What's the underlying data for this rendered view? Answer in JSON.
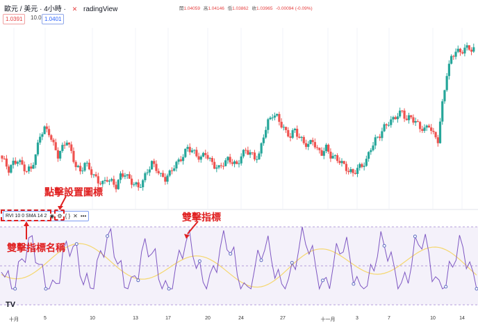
{
  "header": {
    "symbol": "歐元 / 美元 · 4小時 ·",
    "source": "radingView",
    "close_icon": "close-x"
  },
  "ohlc": {
    "open_label": "開",
    "open": "1.04059",
    "high_label": "高",
    "high": "1.04146",
    "low_label": "低",
    "low": "1.03862",
    "close_label": "收",
    "close": "1.03965",
    "change": "-0.00094 (-0.09%)"
  },
  "trade": {
    "sell": "1.0391",
    "spread": "10.0",
    "buy": "1.0401"
  },
  "indicator": {
    "name": "RVI 10 0 SMA 14 2",
    "more": "•••"
  },
  "annotations": {
    "settings": "點擊設置圖標",
    "name": "雙擊指標名稱",
    "double_click": "雙擊指標"
  },
  "xaxis": [
    "十月",
    "5",
    "10",
    "13",
    "17",
    "20",
    "24",
    "27",
    "十一月",
    "3",
    "7",
    "10",
    "14"
  ],
  "colors": {
    "up": "#26a69a",
    "down": "#ef5350",
    "rvi": "#7e57c2",
    "signal": "#f5d76e",
    "accent": "#e02020"
  },
  "logo": "TV",
  "chart_data": {
    "type": "candlestick",
    "price_series": [
      1.056,
      1.0548,
      1.0532,
      1.0545,
      1.0551,
      1.054,
      1.053,
      1.0535,
      1.056,
      1.06,
      1.0612,
      1.0605,
      1.058,
      1.056,
      1.0575,
      1.059,
      1.0565,
      1.054,
      1.0528,
      1.0545,
      1.0535,
      1.052,
      1.051,
      1.0505,
      1.0515,
      1.0508,
      1.05,
      1.052,
      1.0525,
      1.0512,
      1.0505,
      1.0498,
      1.051,
      1.053,
      1.0545,
      1.0535,
      1.052,
      1.0515,
      1.0525,
      1.054,
      1.0548,
      1.056,
      1.0575,
      1.057,
      1.056,
      1.0555,
      1.0565,
      1.055,
      1.054,
      1.0535,
      1.0545,
      1.0552,
      1.0548,
      1.054,
      1.056,
      1.057,
      1.0565,
      1.0555,
      1.056,
      1.06,
      1.0625,
      1.064,
      1.0635,
      1.062,
      1.0605,
      1.0598,
      1.061,
      1.0595,
      1.0585,
      1.058,
      1.059,
      1.057,
      1.0565,
      1.0575,
      1.056,
      1.0555,
      1.055,
      1.054,
      1.053,
      1.0525,
      1.0535,
      1.054,
      1.055,
      1.0575,
      1.059,
      1.06,
      1.0615,
      1.0625,
      1.063,
      1.064,
      1.0645,
      1.063,
      1.0635,
      1.0625,
      1.0615,
      1.061,
      1.062,
      1.06,
      1.059,
      1.066,
      1.072,
      1.075,
      1.0765,
      1.076,
      1.077,
      1.0768
    ]
  }
}
